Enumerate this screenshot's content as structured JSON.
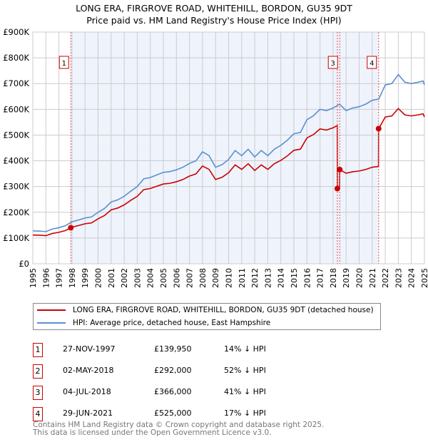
{
  "chart_data": {
    "type": "line",
    "title": "LONG ERA, FIRGROVE ROAD, WHITEHILL, BORDON, GU35 9DT",
    "subtitle": "Price paid vs. HM Land Registry's House Price Index (HPI)",
    "xlim": [
      1995,
      2025
    ],
    "ylim": [
      0,
      900000
    ],
    "x_ticks": [
      "1995",
      "1996",
      "1997",
      "1998",
      "1999",
      "2000",
      "2001",
      "2002",
      "2003",
      "2004",
      "2005",
      "2006",
      "2007",
      "2008",
      "2009",
      "2010",
      "2011",
      "2012",
      "2013",
      "2014",
      "2015",
      "2016",
      "2017",
      "2018",
      "2019",
      "2020",
      "2021",
      "2022",
      "2023",
      "2024",
      "2025"
    ],
    "y_ticks": [
      {
        "v": 0,
        "label": "£0"
      },
      {
        "v": 100000,
        "label": "£100K"
      },
      {
        "v": 200000,
        "label": "£200K"
      },
      {
        "v": 300000,
        "label": "£300K"
      },
      {
        "v": 400000,
        "label": "£400K"
      },
      {
        "v": 500000,
        "label": "£500K"
      },
      {
        "v": 600000,
        "label": "£600K"
      },
      {
        "v": 700000,
        "label": "£700K"
      },
      {
        "v": 800000,
        "label": "£800K"
      },
      {
        "v": 900000,
        "label": "£900K"
      }
    ],
    "grid": true,
    "colors": {
      "property": "#cc0000",
      "hpi": "#5b8fd0",
      "shade": "#eef3fc"
    },
    "hpi_series": {
      "name": "HPI: Average price, detached house, East Hampshire",
      "x": [
        1995,
        1995.5,
        1996,
        1996.5,
        1997,
        1997.5,
        1998,
        1998.5,
        1999,
        1999.5,
        2000,
        2000.5,
        2001,
        2001.5,
        2002,
        2002.5,
        2003,
        2003.5,
        2004,
        2004.5,
        2005,
        2005.5,
        2006,
        2006.5,
        2007,
        2007.5,
        2008,
        2008.5,
        2009,
        2009.5,
        2010,
        2010.5,
        2011,
        2011.5,
        2012,
        2012.5,
        2013,
        2013.5,
        2014,
        2014.5,
        2015,
        2015.5,
        2016,
        2016.5,
        2017,
        2017.5,
        2018,
        2018.5,
        2019,
        2019.5,
        2020,
        2020.5,
        2021,
        2021.5,
        2022,
        2022.5,
        2023,
        2023.5,
        2024,
        2024.5,
        2024.9,
        2025
      ],
      "y": [
        128000,
        127000,
        125000,
        135000,
        140000,
        148000,
        163000,
        170000,
        178000,
        182000,
        200000,
        215000,
        240000,
        248000,
        262000,
        282000,
        300000,
        330000,
        335000,
        345000,
        355000,
        358000,
        365000,
        375000,
        390000,
        400000,
        435000,
        420000,
        375000,
        385000,
        405000,
        440000,
        420000,
        445000,
        415000,
        440000,
        420000,
        445000,
        460000,
        480000,
        505000,
        510000,
        560000,
        575000,
        600000,
        595000,
        605000,
        620000,
        595000,
        605000,
        610000,
        620000,
        635000,
        640000,
        695000,
        700000,
        735000,
        705000,
        700000,
        705000,
        710000,
        695000
      ]
    },
    "property_series": {
      "name": "LONG ERA, FIRGROVE ROAD, WHITEHILL, BORDON, GU35 9DT (detached house)"
    },
    "sales": [
      {
        "id": "1",
        "x": 1997.91,
        "date": "27-NOV-1997",
        "price": 139950,
        "price_label": "£139,950",
        "hpi_diff": "14% ↓ HPI"
      },
      {
        "id": "2",
        "x": 2018.33,
        "date": "02-MAY-2018",
        "price": 292000,
        "price_label": "£292,000",
        "hpi_diff": "52% ↓ HPI"
      },
      {
        "id": "3",
        "x": 2018.51,
        "date": "04-JUL-2018",
        "price": 366000,
        "price_label": "£366,000",
        "hpi_diff": "41% ↓ HPI"
      },
      {
        "id": "4",
        "x": 2021.49,
        "date": "29-JUN-2021",
        "price": 525000,
        "price_label": "£525,000",
        "hpi_diff": "17% ↓ HPI"
      }
    ]
  },
  "footer": {
    "line1": "Contains HM Land Registry data © Crown copyright and database right 2025.",
    "line2": "This data is licensed under the Open Government Licence v3.0."
  }
}
